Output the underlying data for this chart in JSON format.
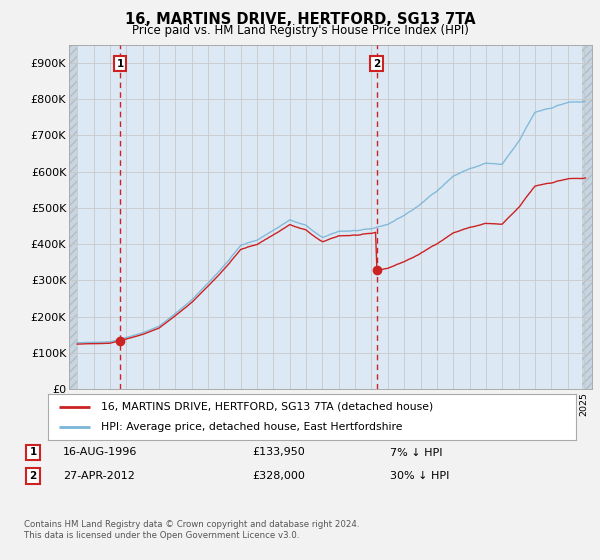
{
  "title": "16, MARTINS DRIVE, HERTFORD, SG13 7TA",
  "subtitle": "Price paid vs. HM Land Registry's House Price Index (HPI)",
  "ylim": [
    0,
    950000
  ],
  "yticks": [
    0,
    100000,
    200000,
    300000,
    400000,
    500000,
    600000,
    700000,
    800000,
    900000
  ],
  "ytick_labels": [
    "£0",
    "£100K",
    "£200K",
    "£300K",
    "£400K",
    "£500K",
    "£600K",
    "£700K",
    "£800K",
    "£900K"
  ],
  "xlim_start": 1993.5,
  "xlim_end": 2025.5,
  "hpi_color": "#7ab5d8",
  "price_color": "#cc2222",
  "grid_color": "#c8c8c8",
  "plot_bg_color": "#dce9f5",
  "hatch_bg_color": "#c8d4e0",
  "background_color": "#f2f2f2",
  "sale1_year": 1996.62,
  "sale1_price": 133950,
  "sale2_year": 2012.32,
  "sale2_price": 328000,
  "legend_label1": "16, MARTINS DRIVE, HERTFORD, SG13 7TA (detached house)",
  "legend_label2": "HPI: Average price, detached house, East Hertfordshire",
  "footnote_line1": "Contains HM Land Registry data © Crown copyright and database right 2024.",
  "footnote_line2": "This data is licensed under the Open Government Licence v3.0."
}
